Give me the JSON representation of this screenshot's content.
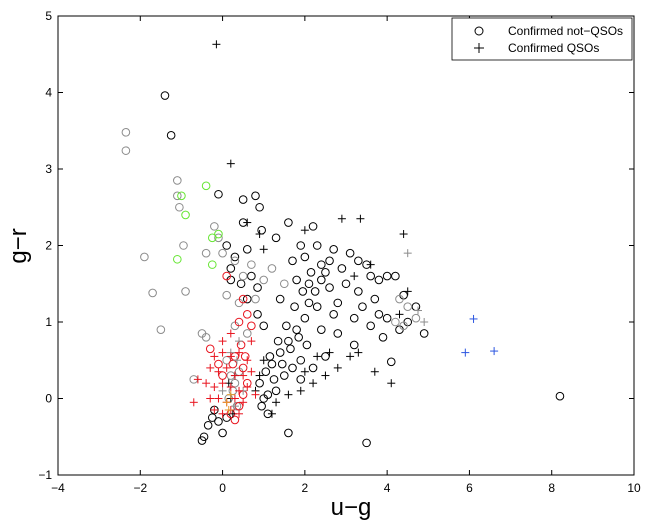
{
  "chart_data": {
    "type": "scatter",
    "title": "",
    "xlabel": "u−g",
    "ylabel": "g−r",
    "xlim": [
      -4,
      10
    ],
    "ylim": [
      -1,
      5
    ],
    "xticks": [
      -4,
      -2,
      0,
      2,
      4,
      6,
      8,
      10
    ],
    "yticks": [
      -1,
      0,
      1,
      2,
      3,
      4,
      5
    ],
    "xtick_labels": [
      "−4",
      "−2",
      "0",
      "2",
      "4",
      "6",
      "8",
      "10"
    ],
    "ytick_labels": [
      "−1",
      "0",
      "1",
      "2",
      "3",
      "4",
      "5"
    ],
    "grid": false,
    "legend": {
      "position": "top-right",
      "entries": [
        {
          "label": "Confirmed not−QSOs",
          "marker": "circle"
        },
        {
          "label": "Confirmed QSOs",
          "marker": "plus"
        }
      ]
    },
    "colors": {
      "black": "#000000",
      "gray": "#8c8c8c",
      "red": "#e8141e",
      "green": "#66e633",
      "blue": "#2b55e0",
      "orange": "#e69a2a"
    },
    "series": [
      {
        "name": "",
        "marker": "circle",
        "color": "#000000",
        "points": [
          [
            -1.4,
            3.96
          ],
          [
            -1.25,
            3.44
          ],
          [
            -0.1,
            2.67
          ],
          [
            0.5,
            2.6
          ],
          [
            0.8,
            2.65
          ],
          [
            0.9,
            2.5
          ],
          [
            0.95,
            2.2
          ],
          [
            1.6,
            2.3
          ],
          [
            2.2,
            2.25
          ],
          [
            0.1,
            2.0
          ],
          [
            0.3,
            1.85
          ],
          [
            0.6,
            1.95
          ],
          [
            1.9,
            2.0
          ],
          [
            2.3,
            2.0
          ],
          [
            2.7,
            1.95
          ],
          [
            3.1,
            1.9
          ],
          [
            1.7,
            1.8
          ],
          [
            2.4,
            1.75
          ],
          [
            2.9,
            1.7
          ],
          [
            3.5,
            1.75
          ],
          [
            3.8,
            1.55
          ],
          [
            4.2,
            1.6
          ],
          [
            1.8,
            1.55
          ],
          [
            2.1,
            1.5
          ],
          [
            2.6,
            1.45
          ],
          [
            3.0,
            1.5
          ],
          [
            3.3,
            1.4
          ],
          [
            3.7,
            1.3
          ],
          [
            4.4,
            1.35
          ],
          [
            1.4,
            1.3
          ],
          [
            2.3,
            1.2
          ],
          [
            2.8,
            1.25
          ],
          [
            3.2,
            1.05
          ],
          [
            3.6,
            0.95
          ],
          [
            3.9,
            0.8
          ],
          [
            4.5,
            1.0
          ],
          [
            4.7,
            1.2
          ],
          [
            4.9,
            0.85
          ],
          [
            4.1,
            0.48
          ],
          [
            3.2,
            0.7
          ],
          [
            2.5,
            0.55
          ],
          [
            2.2,
            0.4
          ],
          [
            1.9,
            0.5
          ],
          [
            1.5,
            0.3
          ],
          [
            1.3,
            0.1
          ],
          [
            1.0,
            0.0
          ],
          [
            1.1,
            -0.2
          ],
          [
            0.9,
            0.2
          ],
          [
            1.2,
            0.45
          ],
          [
            1.4,
            0.6
          ],
          [
            1.6,
            0.75
          ],
          [
            1.8,
            0.9
          ],
          [
            2.0,
            1.05
          ],
          [
            2.1,
            1.25
          ],
          [
            2.25,
            1.4
          ],
          [
            2.4,
            1.55
          ],
          [
            2.5,
            1.65
          ],
          [
            2.6,
            1.8
          ],
          [
            2.15,
            1.65
          ],
          [
            1.95,
            1.4
          ],
          [
            1.75,
            1.2
          ],
          [
            1.55,
            0.95
          ],
          [
            1.35,
            0.75
          ],
          [
            1.15,
            0.55
          ],
          [
            1.05,
            0.35
          ],
          [
            0.95,
            -0.1
          ],
          [
            1.1,
            0.05
          ],
          [
            1.25,
            0.25
          ],
          [
            1.45,
            0.45
          ],
          [
            1.65,
            0.65
          ],
          [
            1.85,
            0.8
          ],
          [
            2.05,
            0.7
          ],
          [
            2.7,
            1.1
          ],
          [
            3.4,
            1.2
          ],
          [
            4.0,
            1.05
          ],
          [
            4.3,
            0.9
          ],
          [
            3.8,
            1.1
          ],
          [
            0.2,
            1.55
          ],
          [
            0.45,
            1.5
          ],
          [
            0.7,
            1.6
          ],
          [
            0.85,
            1.45
          ],
          [
            0.6,
            1.3
          ],
          [
            0.85,
            1.1
          ],
          [
            1.0,
            0.95
          ],
          [
            -0.2,
            -0.15
          ],
          [
            -0.25,
            -0.25
          ],
          [
            -0.35,
            -0.35
          ],
          [
            -0.45,
            -0.5
          ],
          [
            -0.5,
            -0.55
          ],
          [
            0.0,
            -0.45
          ],
          [
            -0.1,
            -0.3
          ],
          [
            0.1,
            -0.25
          ],
          [
            1.6,
            -0.45
          ],
          [
            3.5,
            -0.58
          ],
          [
            8.2,
            0.03
          ],
          [
            0.2,
            1.7
          ],
          [
            0.5,
            2.3
          ],
          [
            1.3,
            2.1
          ],
          [
            2.0,
            1.85
          ],
          [
            3.3,
            1.8
          ],
          [
            3.6,
            1.6
          ],
          [
            4.0,
            1.6
          ],
          [
            2.8,
            0.85
          ],
          [
            2.4,
            0.9
          ],
          [
            1.9,
            0.25
          ],
          [
            1.7,
            0.4
          ]
        ]
      },
      {
        "name": "",
        "marker": "circle",
        "color": "#8c8c8c",
        "points": [
          [
            -2.35,
            3.48
          ],
          [
            -2.35,
            3.24
          ],
          [
            -1.9,
            1.85
          ],
          [
            -1.7,
            1.38
          ],
          [
            -1.5,
            0.9
          ],
          [
            -1.1,
            2.85
          ],
          [
            -1.1,
            2.65
          ],
          [
            -1.05,
            2.5
          ],
          [
            -0.95,
            2.0
          ],
          [
            -0.9,
            1.4
          ],
          [
            -0.7,
            0.25
          ],
          [
            -0.4,
            1.9
          ],
          [
            -0.5,
            0.85
          ],
          [
            -0.4,
            0.8
          ],
          [
            -0.2,
            2.25
          ],
          [
            -0.1,
            2.1
          ],
          [
            0.0,
            1.9
          ],
          [
            0.3,
            1.8
          ],
          [
            0.5,
            1.6
          ],
          [
            0.7,
            1.75
          ],
          [
            1.0,
            1.55
          ],
          [
            1.2,
            1.7
          ],
          [
            1.5,
            1.5
          ],
          [
            0.1,
            1.35
          ],
          [
            0.4,
            1.25
          ],
          [
            0.8,
            1.3
          ],
          [
            0.3,
            0.95
          ],
          [
            0.6,
            0.85
          ],
          [
            4.3,
            1.3
          ],
          [
            4.5,
            1.2
          ],
          [
            4.7,
            1.05
          ],
          [
            4.4,
            0.95
          ],
          [
            4.2,
            1.0
          ],
          [
            0.1,
            0.5
          ],
          [
            0.2,
            0.3
          ],
          [
            0.3,
            0.2
          ],
          [
            0.25,
            0.1
          ],
          [
            0.35,
            -0.1
          ],
          [
            0.15,
            0.0
          ],
          [
            0.4,
            0.35
          ]
        ]
      },
      {
        "name": "",
        "marker": "circle",
        "color": "#e8141e",
        "points": [
          [
            0.1,
            1.6
          ],
          [
            0.5,
            1.3
          ],
          [
            0.6,
            1.1
          ],
          [
            0.7,
            0.95
          ],
          [
            0.4,
            1.0
          ],
          [
            -0.3,
            0.65
          ],
          [
            0.3,
            0.55
          ],
          [
            0.5,
            0.4
          ],
          [
            0.6,
            0.2
          ],
          [
            0.5,
            0.05
          ],
          [
            0.4,
            -0.1
          ],
          [
            0.2,
            -0.2
          ],
          [
            0.3,
            -0.28
          ],
          [
            0.0,
            0.3
          ],
          [
            -0.1,
            0.45
          ],
          [
            0.45,
            0.7
          ],
          [
            0.55,
            0.55
          ],
          [
            0.25,
            0.45
          ]
        ]
      },
      {
        "name": "",
        "marker": "circle",
        "color": "#66e633",
        "points": [
          [
            -0.4,
            2.78
          ],
          [
            -1.0,
            2.65
          ],
          [
            -0.9,
            2.4
          ],
          [
            -0.25,
            2.1
          ],
          [
            -0.1,
            2.15
          ],
          [
            -0.25,
            1.75
          ],
          [
            -1.1,
            1.82
          ]
        ]
      },
      {
        "name": "",
        "marker": "plus",
        "color": "#000000",
        "points": [
          [
            -0.15,
            4.63
          ],
          [
            0.2,
            3.07
          ],
          [
            2.9,
            2.35
          ],
          [
            3.35,
            2.35
          ],
          [
            4.4,
            2.15
          ],
          [
            3.6,
            1.75
          ],
          [
            3.2,
            1.6
          ],
          [
            4.5,
            1.4
          ],
          [
            4.3,
            1.1
          ],
          [
            3.3,
            0.6
          ],
          [
            3.1,
            0.55
          ],
          [
            3.7,
            0.35
          ],
          [
            4.1,
            0.2
          ],
          [
            2.8,
            0.4
          ],
          [
            2.5,
            0.3
          ],
          [
            2.2,
            0.2
          ],
          [
            1.9,
            0.1
          ],
          [
            1.6,
            0.05
          ],
          [
            1.3,
            -0.05
          ],
          [
            1.2,
            -0.2
          ],
          [
            2.0,
            0.35
          ],
          [
            2.3,
            0.55
          ],
          [
            2.6,
            0.6
          ],
          [
            0.9,
            0.3
          ],
          [
            1.0,
            0.5
          ],
          [
            0.8,
            0.1
          ],
          [
            0.2,
            0.0
          ],
          [
            0.25,
            -0.2
          ],
          [
            0.3,
            0.3
          ],
          [
            0.15,
            0.2
          ],
          [
            0.9,
            2.15
          ],
          [
            1.0,
            1.95
          ],
          [
            2.0,
            2.2
          ],
          [
            0.6,
            2.3
          ]
        ]
      },
      {
        "name": "",
        "marker": "plus",
        "color": "#8c8c8c",
        "points": [
          [
            4.5,
            1.9
          ],
          [
            4.9,
            1.0
          ],
          [
            4.75,
            1.15
          ],
          [
            0.2,
            0.6
          ],
          [
            0.35,
            0.5
          ],
          [
            0.5,
            0.1
          ],
          [
            0.0,
            0.1
          ],
          [
            0.3,
            -0.1
          ],
          [
            0.4,
            0.75
          ]
        ]
      },
      {
        "name": "",
        "marker": "plus",
        "color": "#e8141e",
        "points": [
          [
            -0.2,
            0.55
          ],
          [
            0.0,
            0.6
          ],
          [
            0.2,
            0.55
          ],
          [
            0.4,
            0.6
          ],
          [
            0.6,
            0.5
          ],
          [
            -0.3,
            0.4
          ],
          [
            -0.1,
            0.35
          ],
          [
            0.1,
            0.4
          ],
          [
            0.3,
            0.3
          ],
          [
            0.5,
            0.3
          ],
          [
            0.7,
            0.35
          ],
          [
            -0.4,
            0.2
          ],
          [
            -0.2,
            0.15
          ],
          [
            0.0,
            0.2
          ],
          [
            0.2,
            0.15
          ],
          [
            0.4,
            0.1
          ],
          [
            0.6,
            0.15
          ],
          [
            -0.3,
            0.0
          ],
          [
            -0.1,
            0.0
          ],
          [
            0.1,
            -0.05
          ],
          [
            0.3,
            0.0
          ],
          [
            0.5,
            -0.05
          ],
          [
            -0.2,
            -0.15
          ],
          [
            0.0,
            -0.2
          ],
          [
            0.2,
            -0.15
          ],
          [
            0.4,
            -0.2
          ],
          [
            -0.7,
            -0.05
          ],
          [
            -0.6,
            0.25
          ],
          [
            0.0,
            0.75
          ],
          [
            0.7,
            0.75
          ],
          [
            0.2,
            0.85
          ],
          [
            0.8,
            0.05
          ]
        ]
      },
      {
        "name": "",
        "marker": "plus",
        "color": "#2b55e0",
        "points": [
          [
            6.1,
            1.04
          ],
          [
            5.9,
            0.6
          ],
          [
            6.6,
            0.62
          ]
        ]
      },
      {
        "name": "",
        "marker": "plus",
        "color": "#e69a2a",
        "points": [
          [
            0.1,
            -0.05
          ],
          [
            0.15,
            -0.15
          ],
          [
            0.2,
            0.05
          ]
        ]
      }
    ]
  }
}
